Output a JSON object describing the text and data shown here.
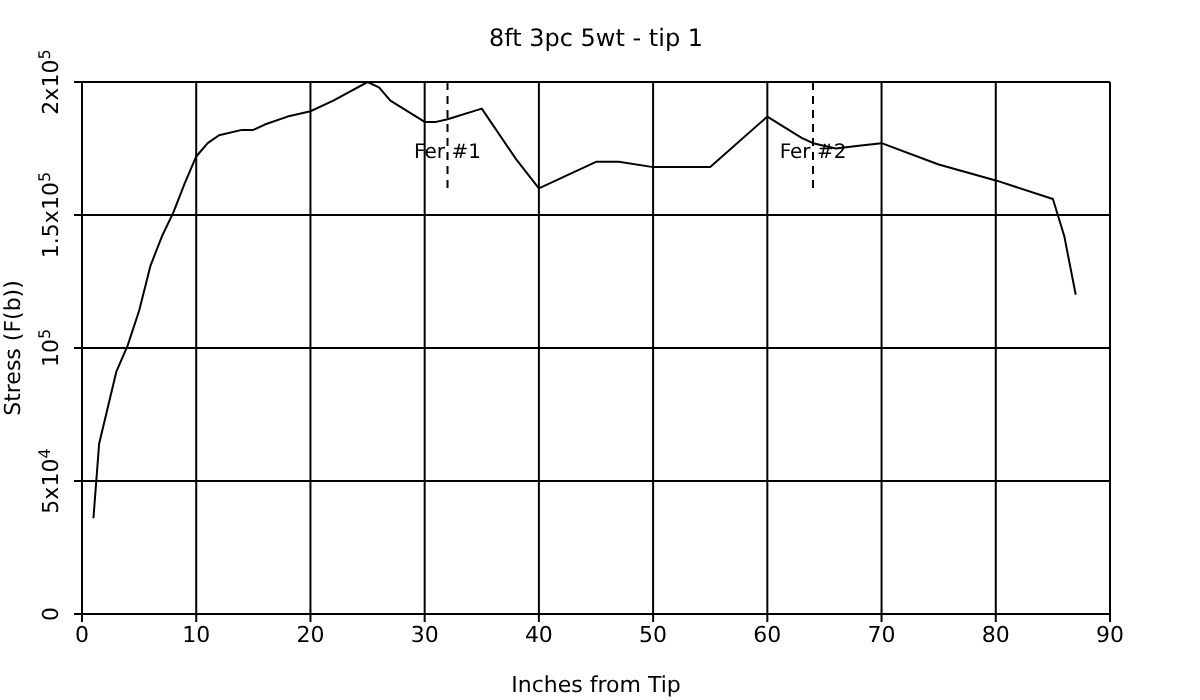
{
  "chart_data": {
    "type": "line",
    "title": "8ft 3pc 5wt - tip 1",
    "xlabel": "Inches from Tip",
    "ylabel": "Stress (F(b))",
    "x": [
      1,
      1.5,
      3,
      4,
      5,
      6,
      7,
      8,
      9,
      10,
      11,
      12,
      14,
      15,
      16,
      18,
      20,
      22,
      25,
      26,
      27,
      30,
      31,
      32,
      35,
      38,
      40,
      45,
      47,
      50,
      55,
      60,
      63,
      64,
      66,
      68,
      70,
      75,
      80,
      85,
      86,
      87
    ],
    "series": [
      {
        "color": "#000000",
        "values": [
          36000,
          64000,
          91000,
          101000,
          114000,
          131000,
          142000,
          151000,
          162000,
          172000,
          177000,
          180000,
          182000,
          182000,
          184000,
          187000,
          189000,
          193000,
          200000,
          198000,
          193000,
          185000,
          185000,
          186000,
          190000,
          171000,
          160000,
          170000,
          170000,
          168000,
          168000,
          187000,
          179000,
          177000,
          175000,
          176000,
          177000,
          169000,
          163000,
          156000,
          142000,
          120000
        ]
      }
    ],
    "xlim": [
      0,
      90
    ],
    "xticks": [
      0,
      10,
      20,
      30,
      40,
      50,
      60,
      70,
      80,
      90
    ],
    "ylim": [
      0,
      200000
    ],
    "yticks": [
      0,
      {
        "value": 50000,
        "label": "5x10$^{4}$"
      },
      {
        "value": 100000,
        "label": "10$^{5}$"
      },
      {
        "value": 150000,
        "label": "1.5x10$^{5}$"
      },
      {
        "value": 200000,
        "label": "2x10$^{5}$"
      }
    ],
    "grid": true,
    "legend": false,
    "marker": "none",
    "line_style": "solid",
    "ref_lines": [
      {
        "axis": "x",
        "value": 32,
        "label": "Fer #1",
        "line_style": "dashed"
      },
      {
        "axis": "x",
        "value": 64,
        "label": "Fer #2",
        "line_style": "dashed"
      }
    ]
  }
}
